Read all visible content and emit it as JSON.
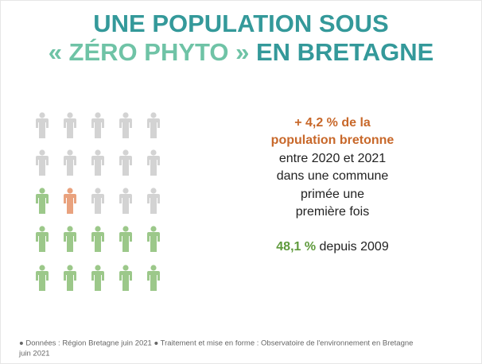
{
  "header": {
    "title_line1": "UNE POPULATION SOUS",
    "title_accent": "« ZÉRO PHYTO »",
    "title_line2_end": "EN BRETAGNE"
  },
  "highlight": {
    "lines": [
      "+ 4,2 % de la",
      "population bretonne"
    ]
  },
  "description": {
    "lines": [
      "entre 2020 et 2021",
      "dans une commune",
      "primée une",
      "première fois"
    ]
  },
  "stat": {
    "value": "48,1 %",
    "text": "depuis 2009"
  },
  "footer": {
    "lines": [
      "● Données : Région Bretagne juin 2021 ● Traitement et mise en forme : Observatoire de l'environnement en Bretagne",
      "juin 2021"
    ]
  }
}
